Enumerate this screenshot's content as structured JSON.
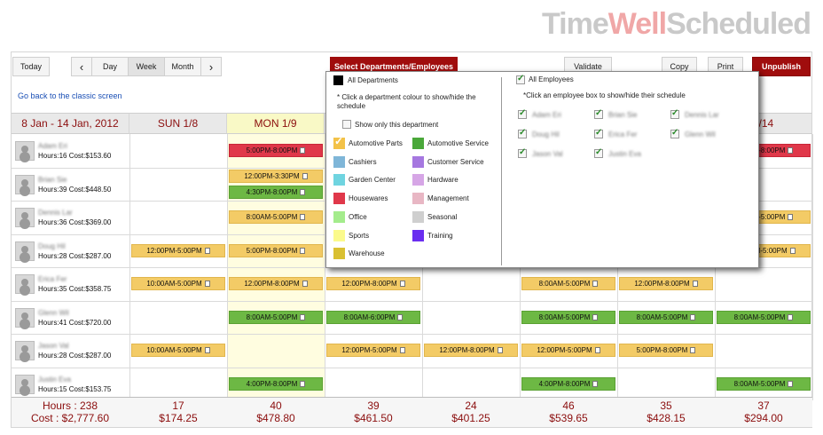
{
  "brand": {
    "part1": "Time",
    "part2": "Well",
    "part3": "Scheduled"
  },
  "toolbar": {
    "today": "Today",
    "prev": "‹",
    "day": "Day",
    "week": "Week",
    "month": "Month",
    "next": "›",
    "select_departments": "Select Departments/Employees",
    "validate": "Validate",
    "copy": "Copy",
    "print": "Print",
    "unpublish": "Unpublish"
  },
  "classic_link": "Go back to the classic screen",
  "header": {
    "range": "8 Jan - 14 Jan, 2012",
    "days": [
      "SUN  1/8",
      "MON  1/9",
      "",
      "",
      "",
      "",
      "1/14"
    ]
  },
  "employees": [
    {
      "name": "Adam Eri",
      "hours": "Hours:16",
      "cost": "Cost:$153.60"
    },
    {
      "name": "Brian Sie",
      "hours": "Hours:39",
      "cost": "Cost:$448.50"
    },
    {
      "name": "Dennis Lar",
      "hours": "Hours:36",
      "cost": "Cost:$369.00"
    },
    {
      "name": "Doug Hil",
      "hours": "Hours:28",
      "cost": "Cost:$287.00"
    },
    {
      "name": "Erica Fer",
      "hours": "Hours:35",
      "cost": "Cost:$358.75"
    },
    {
      "name": "Glenn Wil",
      "hours": "Hours:41",
      "cost": "Cost:$720.00"
    },
    {
      "name": "Jason Val",
      "hours": "Hours:28",
      "cost": "Cost:$287.00"
    },
    {
      "name": "Justin Eva",
      "hours": "Hours:15",
      "cost": "Cost:$153.75"
    }
  ],
  "shifts": [
    {
      "row": 0,
      "col": 1,
      "text": "5:00PM-8:00PM",
      "color": "red"
    },
    {
      "row": 0,
      "col": 6,
      "text": "5:00PM-8:00PM",
      "color": "red"
    },
    {
      "row": 1,
      "col": 1,
      "text": "12:00PM-3:30PM",
      "color": "yellow",
      "slot": 0
    },
    {
      "row": 1,
      "col": 1,
      "text": "4:30PM-8:00PM",
      "color": "green",
      "slot": 1
    },
    {
      "row": 2,
      "col": 1,
      "text": "8:00AM-5:00PM",
      "color": "yellow"
    },
    {
      "row": 2,
      "col": 6,
      "text": "8:00PM-5:00PM",
      "color": "yellow"
    },
    {
      "row": 3,
      "col": 0,
      "text": "12:00PM-5:00PM",
      "color": "yellow"
    },
    {
      "row": 3,
      "col": 1,
      "text": "5:00PM-8:00PM",
      "color": "yellow"
    },
    {
      "row": 3,
      "col": 6,
      "text": "12:00PM-5:00PM",
      "color": "yellow"
    },
    {
      "row": 4,
      "col": 0,
      "text": "10:00AM-5:00PM",
      "color": "yellow"
    },
    {
      "row": 4,
      "col": 1,
      "text": "12:00PM-8:00PM",
      "color": "yellow"
    },
    {
      "row": 4,
      "col": 2,
      "text": "12:00PM-8:00PM",
      "color": "yellow"
    },
    {
      "row": 4,
      "col": 4,
      "text": "8:00AM-5:00PM",
      "color": "yellow"
    },
    {
      "row": 4,
      "col": 5,
      "text": "12:00PM-8:00PM",
      "color": "yellow"
    },
    {
      "row": 5,
      "col": 1,
      "text": "8:00AM-5:00PM",
      "color": "green"
    },
    {
      "row": 5,
      "col": 2,
      "text": "8:00AM-6:00PM",
      "color": "green"
    },
    {
      "row": 5,
      "col": 4,
      "text": "8:00AM-5:00PM",
      "color": "green"
    },
    {
      "row": 5,
      "col": 5,
      "text": "8:00AM-5:00PM",
      "color": "green"
    },
    {
      "row": 5,
      "col": 6,
      "text": "8:00AM-5:00PM",
      "color": "green"
    },
    {
      "row": 6,
      "col": 0,
      "text": "10:00AM-5:00PM",
      "color": "yellow"
    },
    {
      "row": 6,
      "col": 2,
      "text": "12:00PM-5:00PM",
      "color": "yellow"
    },
    {
      "row": 6,
      "col": 3,
      "text": "12:00PM-8:00PM",
      "color": "yellow"
    },
    {
      "row": 6,
      "col": 4,
      "text": "12:00PM-5:00PM",
      "color": "yellow"
    },
    {
      "row": 6,
      "col": 5,
      "text": "5:00PM-8:00PM",
      "color": "yellow"
    },
    {
      "row": 7,
      "col": 1,
      "text": "4:00PM-8:00PM",
      "color": "green"
    },
    {
      "row": 7,
      "col": 4,
      "text": "4:00PM-8:00PM",
      "color": "green"
    },
    {
      "row": 7,
      "col": 6,
      "text": "8:00AM-5:00PM",
      "color": "green"
    }
  ],
  "totals": {
    "hours": "Hours : 238",
    "cost": "Cost : $2,777.60",
    "days": [
      {
        "hours": "17",
        "cost": "$174.25"
      },
      {
        "hours": "40",
        "cost": "$478.80"
      },
      {
        "hours": "39",
        "cost": "$461.50"
      },
      {
        "hours": "24",
        "cost": "$401.25"
      },
      {
        "hours": "46",
        "cost": "$539.65"
      },
      {
        "hours": "35",
        "cost": "$428.15"
      },
      {
        "hours": "37",
        "cost": "$294.00"
      }
    ]
  },
  "panel": {
    "all_departments": "All Departments",
    "dept_hint": "* Click a department colour to show/hide the schedule",
    "only_this": "Show only this department",
    "departments": [
      {
        "name": "Automotive Parts",
        "color": "#f3c248",
        "checked": true
      },
      {
        "name": "Automotive Service",
        "color": "#4aa83a"
      },
      {
        "name": "Cashiers",
        "color": "#7fb6d8"
      },
      {
        "name": "Customer Service",
        "color": "#a678e0"
      },
      {
        "name": "Garden Center",
        "color": "#6fd4e0"
      },
      {
        "name": "Hardware",
        "color": "#d6a6e6"
      },
      {
        "name": "Housewares",
        "color": "#e0384a"
      },
      {
        "name": "Management",
        "color": "#e8b7c4"
      },
      {
        "name": "Office",
        "color": "#a4ec8c"
      },
      {
        "name": "Seasonal",
        "color": "#cfcfcf"
      },
      {
        "name": "Sports",
        "color": "#fbfa8c"
      },
      {
        "name": "Training",
        "color": "#6a2ef0"
      },
      {
        "name": "Warehouse",
        "color": "#d9c032"
      }
    ],
    "all_employees": "All Employees",
    "emp_hint": "*Click an employee box to show/hide their schedule",
    "employee_names": [
      "Adam Eri",
      "Brian Sie",
      "Dennis Lar",
      "Doug Hil",
      "Erica Fer",
      "Glenn Wil",
      "Jason Val",
      "Justin Eva"
    ]
  },
  "colors": {
    "accent": "#a00d0d",
    "yellow": "#f3cb66",
    "green": "#6db844",
    "red": "#e0384a",
    "today": "#fffde0"
  }
}
